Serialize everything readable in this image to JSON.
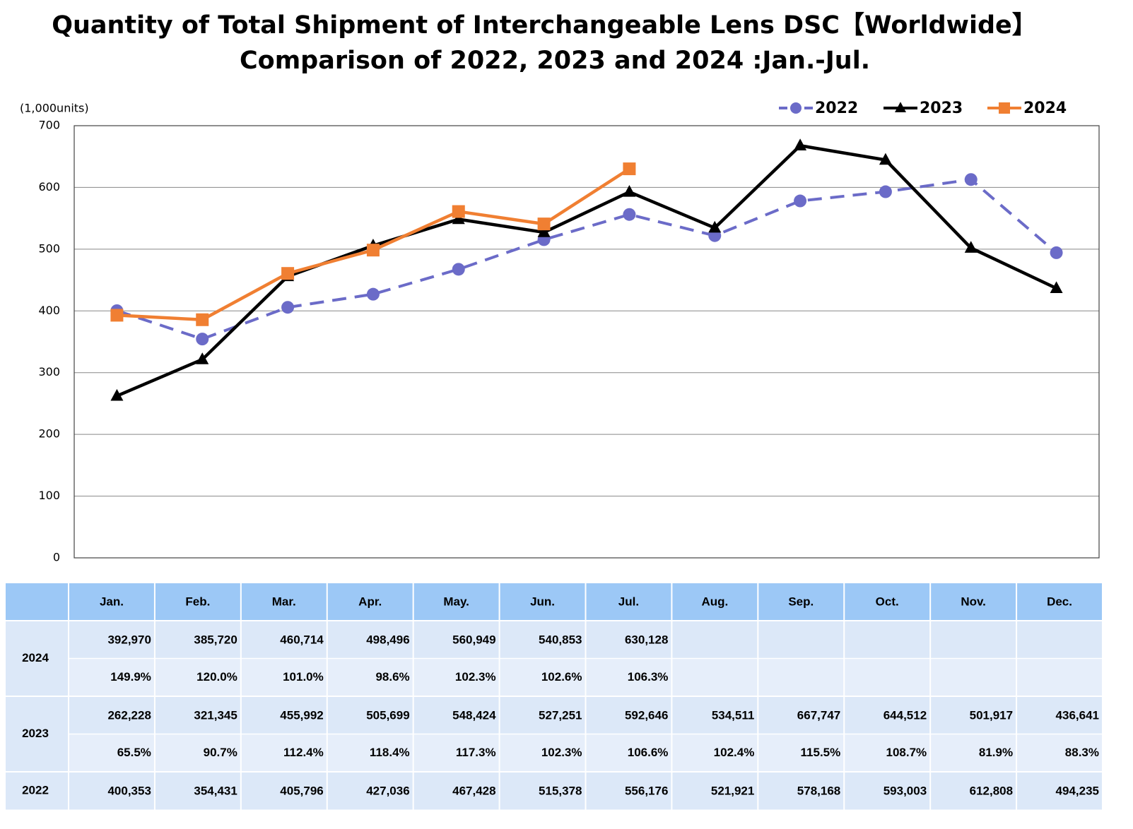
{
  "chart_data": {
    "type": "line",
    "title": "Quantity of Total Shipment of Interchangeable Lens DSC【Worldwide】",
    "subtitle": "Comparison of 2022, 2023 and 2024 :Jan.-Jul.",
    "y_label": "(1,000units)",
    "categories": [
      "Jan.",
      "Feb.",
      "Mar.",
      "Apr.",
      "May.",
      "Jun.",
      "Jul.",
      "Aug.",
      "Sep.",
      "Oct.",
      "Nov.",
      "Dec."
    ],
    "ylim": [
      0,
      700
    ],
    "yticks": [
      0,
      100,
      200,
      300,
      400,
      500,
      600,
      700
    ],
    "grid": true,
    "legend": "top-right",
    "series": [
      {
        "name": "2022",
        "color": "#6b6bc8",
        "dashed": true,
        "marker": "circle",
        "values": [
          400.353,
          354.431,
          405.796,
          427.036,
          467.428,
          515.378,
          556.176,
          521.921,
          578.168,
          593.003,
          612.808,
          494.235
        ]
      },
      {
        "name": "2023",
        "color": "#000000",
        "dashed": false,
        "marker": "triangle",
        "values": [
          262.228,
          321.345,
          455.992,
          505.699,
          548.424,
          527.251,
          592.646,
          534.511,
          667.747,
          644.512,
          501.917,
          436.641
        ]
      },
      {
        "name": "2024",
        "color": "#f07f32",
        "dashed": false,
        "marker": "square",
        "values": [
          392.97,
          385.72,
          460.714,
          498.496,
          560.949,
          540.853,
          630.128,
          null,
          null,
          null,
          null,
          null
        ]
      }
    ]
  },
  "table": {
    "rows": [
      {
        "label": "2024",
        "values": [
          "392,970",
          "385,720",
          "460,714",
          "498,496",
          "560,949",
          "540,853",
          "630,128"
        ],
        "ratios": [
          "149.9%",
          "120.0%",
          "101.0%",
          "98.6%",
          "102.3%",
          "102.6%",
          "106.3%"
        ]
      },
      {
        "label": "2023",
        "values": [
          "262,228",
          "321,345",
          "455,992",
          "505,699",
          "548,424",
          "527,251",
          "592,646",
          "534,511",
          "667,747",
          "644,512",
          "501,917",
          "436,641"
        ],
        "ratios": [
          "65.5%",
          "90.7%",
          "112.4%",
          "118.4%",
          "117.3%",
          "102.3%",
          "106.6%",
          "102.4%",
          "115.5%",
          "108.7%",
          "81.9%",
          "88.3%"
        ]
      },
      {
        "label": "2022",
        "values": [
          "400,353",
          "354,431",
          "405,796",
          "427,036",
          "467,428",
          "515,378",
          "556,176",
          "521,921",
          "578,168",
          "593,003",
          "612,808",
          "494,235"
        ]
      }
    ]
  }
}
